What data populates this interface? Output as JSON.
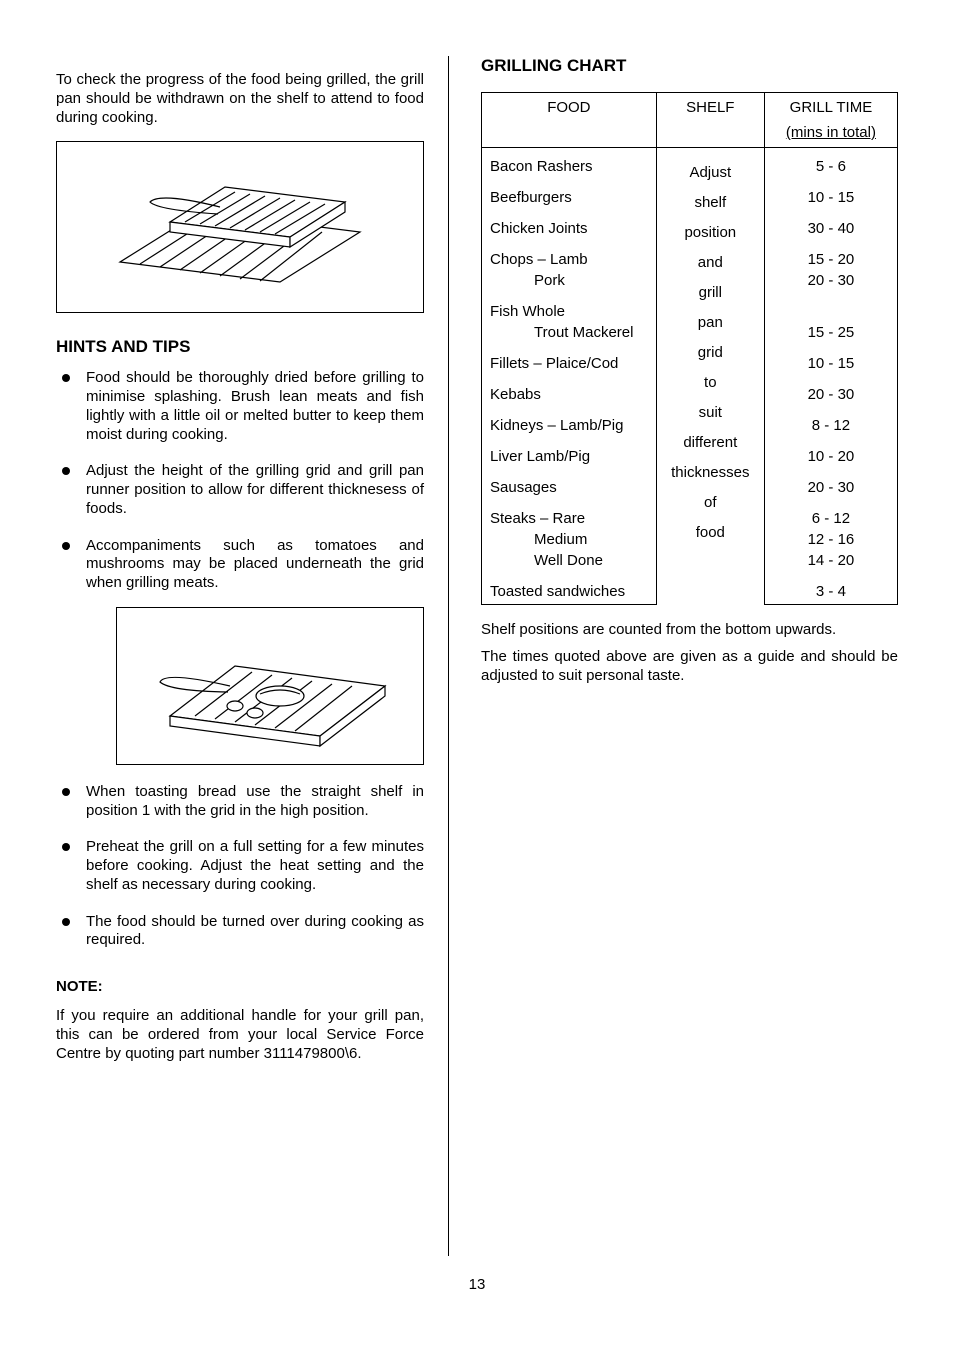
{
  "left": {
    "intro": "To check the progress of the food being grilled, the grill pan should be withdrawn on the shelf to attend to food during cooking.",
    "hintsHeading": "HINTS AND TIPS",
    "tips": [
      "Food should be thoroughly dried before grilling to minimise splashing.  Brush lean meats and fish lightly with a little oil or melted butter to keep them moist during cooking.",
      "Adjust the height of the grilling grid and grill pan runner position to allow for different thicknesess of foods.",
      "Accompaniments such as tomatoes and mushrooms may be placed underneath the grid when grilling meats.",
      "When toasting bread use the straight shelf in position 1 with the grid in the high position.",
      "Preheat the grill on a full setting for a few minutes before cooking.  Adjust the heat setting and the shelf as necessary during cooking.",
      "The food should be turned over during cooking as required."
    ],
    "noteLabel": "NOTE:",
    "noteBody": "If you require an additional handle for your grill pan, this can be ordered from your local Service Force Centre by quoting part number 3111479800\\6."
  },
  "right": {
    "chartHeading": "GRILLING CHART",
    "headers": {
      "food": "FOOD",
      "shelf": "SHELF",
      "time": "GRILL TIME",
      "timeSub": "(mins in total)"
    },
    "shelfWords": [
      "Adjust",
      "shelf",
      "position",
      "and",
      "grill",
      "pan",
      "grid",
      "to",
      "suit",
      "different",
      "thicknesses",
      "of",
      "food"
    ],
    "rows": [
      {
        "food": "Bacon Rashers",
        "time": "5 - 6"
      },
      {
        "food": "Beefburgers",
        "time": "10 - 15"
      },
      {
        "food": "Chicken Joints",
        "time": "30 - 40"
      },
      {
        "food": "Chops – Lamb",
        "time": "15 - 20"
      },
      {
        "food": "              Pork",
        "time": "20 - 30",
        "indent": true,
        "tight": true
      },
      {
        "food": "Fish Whole",
        "time": ""
      },
      {
        "food": "         Trout Mackerel",
        "time": "15 - 25",
        "indent": true,
        "tight": true
      },
      {
        "food": "Fillets – Plaice/Cod",
        "time": "10 - 15"
      },
      {
        "food": "Kebabs",
        "time": "20 - 30"
      },
      {
        "food": "Kidneys – Lamb/Pig",
        "time": "8 - 12"
      },
      {
        "food": "Liver Lamb/Pig",
        "time": "10 - 20"
      },
      {
        "food": "Sausages",
        "time": "20 - 30"
      },
      {
        "food": "Steaks – Rare",
        "time": "6 - 12"
      },
      {
        "food": "               Medium",
        "time": "12 - 16",
        "indent": true,
        "tight": true
      },
      {
        "food": "               Well Done",
        "time": "14 - 20",
        "indent": true,
        "tight": true
      },
      {
        "food": "Toasted sandwiches",
        "time": "3 - 4"
      }
    ],
    "notes": [
      "Shelf positions are counted from the bottom upwards.",
      "The times quoted above are given as a guide and should be adjusted to suit personal taste."
    ]
  },
  "pageNumber": "13",
  "style": {
    "lineColor": "#000000",
    "bg": "#ffffff"
  }
}
